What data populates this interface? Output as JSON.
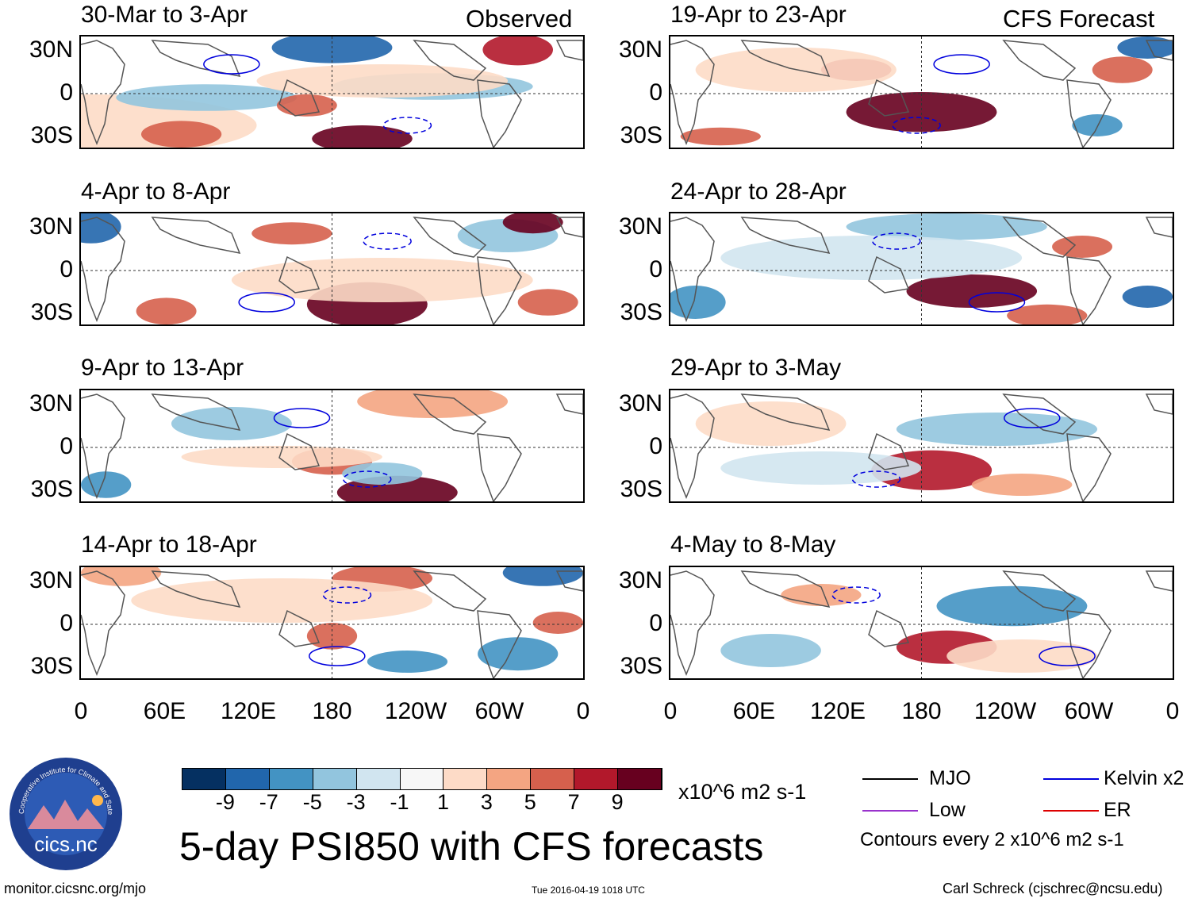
{
  "chart_data": {
    "type": "heatmap",
    "title": "5-day PSI850 with CFS forecasts",
    "columns": {
      "observed": "Observed",
      "forecast": "CFS Forecast"
    },
    "lat_ticks": [
      "30N",
      "0",
      "30S"
    ],
    "lon_ticks": [
      "0",
      "60E",
      "120E",
      "180",
      "120W",
      "60W",
      "0"
    ],
    "panels_observed": [
      {
        "period": "30-Mar to 3-Apr"
      },
      {
        "period": "4-Apr to 8-Apr"
      },
      {
        "period": "9-Apr to 13-Apr"
      },
      {
        "period": "14-Apr to 18-Apr"
      }
    ],
    "panels_forecast": [
      {
        "period": "19-Apr to 23-Apr"
      },
      {
        "period": "24-Apr to 28-Apr"
      },
      {
        "period": "29-Apr to 3-May"
      },
      {
        "period": "4-May to 8-May"
      }
    ],
    "colorbar": {
      "labels": [
        "-9",
        "-7",
        "-5",
        "-3",
        "-1",
        "1",
        "3",
        "5",
        "7",
        "9"
      ],
      "colors": [
        "#053061",
        "#2166ac",
        "#4393c3",
        "#92c5de",
        "#d1e5f0",
        "#f7f7f7",
        "#fddbc7",
        "#f4a582",
        "#d6604d",
        "#b2182b",
        "#67001f"
      ],
      "units": "x10^6 m2 s-1"
    },
    "legend": {
      "entries": [
        {
          "label": "MJO",
          "color": "#000000"
        },
        {
          "label": "Kelvin x2",
          "color": "#0000dd"
        },
        {
          "label": "Low",
          "color": "#9933cc"
        },
        {
          "label": "ER",
          "color": "#dd0000"
        }
      ],
      "contours_note": "Contours every 2 x10^6 m2 s-1"
    }
  },
  "logo": {
    "text": "cics.nc",
    "ring_text": "Cooperative Institute for Climate and Satellites"
  },
  "footer": {
    "url": "monitor.cicsnc.org/mjo",
    "timestamp": "Tue 2016-04-19 1018 UTC",
    "author": "Carl Schreck (cjschrec@ncsu.edu)"
  }
}
